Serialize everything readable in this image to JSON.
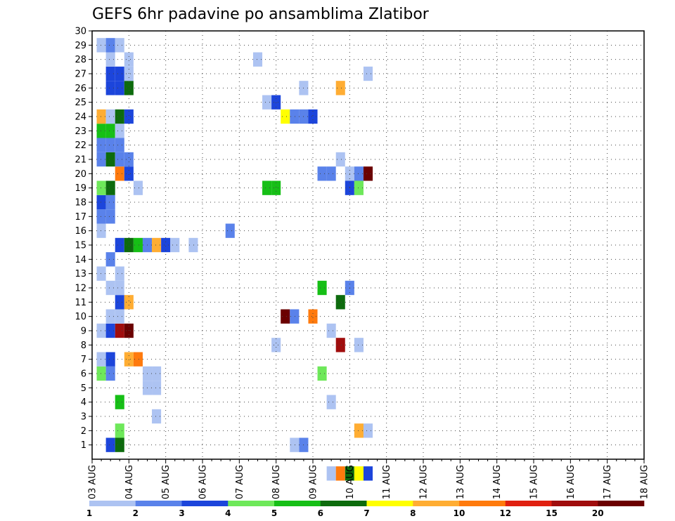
{
  "chart_data": {
    "type": "heatmap",
    "title": "GEFS 6hr padavine po ansamblima Zlatibor",
    "xlabel": "",
    "ylabel": "",
    "y_ticks": [
      "1",
      "2",
      "3",
      "4",
      "5",
      "6",
      "7",
      "8",
      "9",
      "10",
      "11",
      "12",
      "13",
      "14",
      "15",
      "16",
      "17",
      "18",
      "19",
      "20",
      "21",
      "22",
      "23",
      "24",
      "25",
      "26",
      "27",
      "28",
      "29",
      "30"
    ],
    "x_ticks": [
      "03 AUG",
      "04 AUG",
      "05 AUG",
      "06 AUG",
      "07 AUG",
      "08 AUG",
      "09 AUG",
      "10 AUG",
      "11 AUG",
      "12 AUG",
      "13 AUG",
      "14 AUG",
      "15 AUG",
      "16 AUG",
      "17 AUG",
      "18 AUG"
    ],
    "x_range_steps": [
      0,
      60
    ],
    "y_range": [
      0,
      30
    ],
    "grid": true,
    "colorbar": {
      "boundaries": [
        "1",
        "2",
        "3",
        "4",
        "5",
        "6",
        "7",
        "8",
        "10",
        "12",
        "15",
        "20"
      ],
      "colors": [
        "#adc3f2",
        "#5a82ea",
        "#1c45db",
        "#6ee85a",
        "#16bf16",
        "#0d6b0d",
        "#ffff00",
        "#ffad33",
        "#ff7a0d",
        "#e02010",
        "#a00d0d",
        "#6b0000"
      ]
    },
    "cells": [
      [
        2,
        1,
        "#1c45db"
      ],
      [
        3,
        1,
        "#0d6b0d"
      ],
      [
        22,
        1,
        "#adc3f2"
      ],
      [
        23,
        1,
        "#5a82ea"
      ],
      [
        3,
        2,
        "#6ee85a"
      ],
      [
        29,
        2,
        "#ffad33"
      ],
      [
        30,
        2,
        "#adc3f2"
      ],
      [
        7,
        3,
        "#adc3f2"
      ],
      [
        3,
        4,
        "#16bf16"
      ],
      [
        26,
        4,
        "#adc3f2"
      ],
      [
        6,
        5,
        "#adc3f2"
      ],
      [
        7,
        5,
        "#adc3f2"
      ],
      [
        1,
        6,
        "#6ee85a"
      ],
      [
        2,
        6,
        "#5a82ea"
      ],
      [
        6,
        6,
        "#adc3f2"
      ],
      [
        7,
        6,
        "#adc3f2"
      ],
      [
        25,
        6,
        "#6ee85a"
      ],
      [
        1,
        7,
        "#adc3f2"
      ],
      [
        2,
        7,
        "#1c45db"
      ],
      [
        4,
        7,
        "#ffad33"
      ],
      [
        5,
        7,
        "#ff7a0d"
      ],
      [
        20,
        8,
        "#adc3f2"
      ],
      [
        27,
        8,
        "#a00d0d"
      ],
      [
        29,
        8,
        "#adc3f2"
      ],
      [
        1,
        9,
        "#adc3f2"
      ],
      [
        2,
        9,
        "#1c45db"
      ],
      [
        3,
        9,
        "#a00d0d"
      ],
      [
        4,
        9,
        "#6b0000"
      ],
      [
        26,
        9,
        "#adc3f2"
      ],
      [
        2,
        10,
        "#adc3f2"
      ],
      [
        3,
        10,
        "#adc3f2"
      ],
      [
        21,
        10,
        "#6b0000"
      ],
      [
        22,
        10,
        "#5a82ea"
      ],
      [
        24,
        10,
        "#ff7a0d"
      ],
      [
        3,
        11,
        "#1c45db"
      ],
      [
        4,
        11,
        "#ffad33"
      ],
      [
        27,
        11,
        "#0d6b0d"
      ],
      [
        2,
        12,
        "#adc3f2"
      ],
      [
        3,
        12,
        "#adc3f2"
      ],
      [
        25,
        12,
        "#16bf16"
      ],
      [
        28,
        12,
        "#5a82ea"
      ],
      [
        1,
        13,
        "#adc3f2"
      ],
      [
        3,
        13,
        "#adc3f2"
      ],
      [
        2,
        14,
        "#5a82ea"
      ],
      [
        3,
        15,
        "#1c45db"
      ],
      [
        4,
        15,
        "#0d6b0d"
      ],
      [
        5,
        15,
        "#16bf16"
      ],
      [
        6,
        15,
        "#5a82ea"
      ],
      [
        7,
        15,
        "#ffad33"
      ],
      [
        8,
        15,
        "#1c45db"
      ],
      [
        9,
        15,
        "#adc3f2"
      ],
      [
        11,
        15,
        "#adc3f2"
      ],
      [
        1,
        16,
        "#adc3f2"
      ],
      [
        15,
        16,
        "#5a82ea"
      ],
      [
        1,
        17,
        "#5a82ea"
      ],
      [
        2,
        17,
        "#5a82ea"
      ],
      [
        1,
        18,
        "#1c45db"
      ],
      [
        2,
        18,
        "#5a82ea"
      ],
      [
        1,
        19,
        "#6ee85a"
      ],
      [
        2,
        19,
        "#0d6b0d"
      ],
      [
        5,
        19,
        "#adc3f2"
      ],
      [
        19,
        19,
        "#16bf16"
      ],
      [
        20,
        19,
        "#16bf16"
      ],
      [
        28,
        19,
        "#1c45db"
      ],
      [
        29,
        19,
        "#6ee85a"
      ],
      [
        3,
        20,
        "#ff7a0d"
      ],
      [
        4,
        20,
        "#1c45db"
      ],
      [
        25,
        20,
        "#5a82ea"
      ],
      [
        26,
        20,
        "#5a82ea"
      ],
      [
        28,
        20,
        "#adc3f2"
      ],
      [
        29,
        20,
        "#5a82ea"
      ],
      [
        30,
        20,
        "#6b0000"
      ],
      [
        1,
        21,
        "#5a82ea"
      ],
      [
        2,
        21,
        "#0d6b0d"
      ],
      [
        3,
        21,
        "#5a82ea"
      ],
      [
        4,
        21,
        "#5a82ea"
      ],
      [
        27,
        21,
        "#adc3f2"
      ],
      [
        1,
        22,
        "#5a82ea"
      ],
      [
        2,
        22,
        "#5a82ea"
      ],
      [
        3,
        22,
        "#5a82ea"
      ],
      [
        1,
        23,
        "#16bf16"
      ],
      [
        2,
        23,
        "#16bf16"
      ],
      [
        3,
        23,
        "#adc3f2"
      ],
      [
        1,
        24,
        "#ffad33"
      ],
      [
        2,
        24,
        "#adc3f2"
      ],
      [
        3,
        24,
        "#0d6b0d"
      ],
      [
        4,
        24,
        "#1c45db"
      ],
      [
        21,
        24,
        "#ffff00"
      ],
      [
        22,
        24,
        "#5a82ea"
      ],
      [
        23,
        24,
        "#5a82ea"
      ],
      [
        24,
        24,
        "#1c45db"
      ],
      [
        19,
        25,
        "#adc3f2"
      ],
      [
        20,
        25,
        "#1c45db"
      ],
      [
        2,
        26,
        "#1c45db"
      ],
      [
        3,
        26,
        "#1c45db"
      ],
      [
        4,
        26,
        "#0d6b0d"
      ],
      [
        23,
        26,
        "#adc3f2"
      ],
      [
        27,
        26,
        "#ffad33"
      ],
      [
        2,
        27,
        "#1c45db"
      ],
      [
        3,
        27,
        "#1c45db"
      ],
      [
        4,
        27,
        "#adc3f2"
      ],
      [
        30,
        27,
        "#adc3f2"
      ],
      [
        2,
        28,
        "#adc3f2"
      ],
      [
        4,
        28,
        "#adc3f2"
      ],
      [
        18,
        28,
        "#adc3f2"
      ],
      [
        1,
        29,
        "#adc3f2"
      ],
      [
        2,
        29,
        "#5a82ea"
      ],
      [
        3,
        29,
        "#adc3f2"
      ],
      [
        26,
        -1,
        "#adc3f2"
      ],
      [
        27,
        -1,
        "#ff7a0d"
      ],
      [
        28,
        -1,
        "#0d6b0d"
      ],
      [
        29,
        -1,
        "#ffff00"
      ],
      [
        30,
        -1,
        "#1c45db"
      ]
    ]
  }
}
